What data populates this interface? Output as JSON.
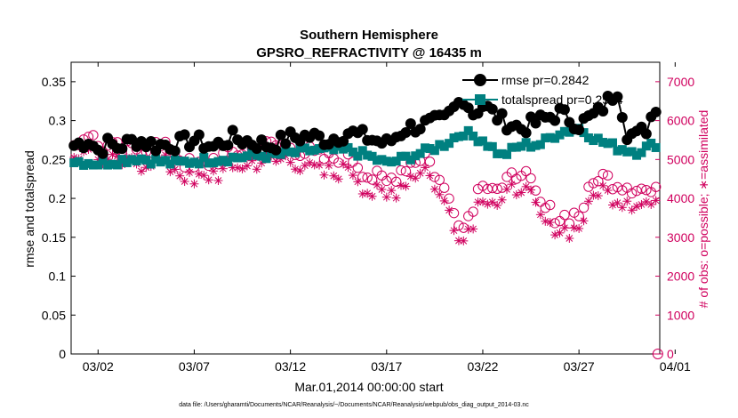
{
  "chart_data": {
    "type": "line",
    "title": "Southern Hemisphere",
    "subtitle": "GPSRO_REFRACTIVITY @ 16435 m",
    "xlabel": "Mar.01,2014 00:00:00 start",
    "ylabel": "rmse and totalspread",
    "y2label": "# of obs: o=possible; ∗=assimilated",
    "xlim": [
      0.6,
      31.2
    ],
    "ylim": [
      0,
      0.375
    ],
    "y2lim": [
      0,
      7500
    ],
    "x_ticks": [
      {
        "v": 2,
        "label": "03/02"
      },
      {
        "v": 7,
        "label": "03/07"
      },
      {
        "v": 12,
        "label": "03/12"
      },
      {
        "v": 17,
        "label": "03/17"
      },
      {
        "v": 22,
        "label": "03/22"
      },
      {
        "v": 27,
        "label": "03/27"
      },
      {
        "v": 32,
        "label": "04/01"
      }
    ],
    "y_ticks": [
      {
        "v": 0,
        "label": "0"
      },
      {
        "v": 0.05,
        "label": "0.05"
      },
      {
        "v": 0.1,
        "label": "0.1"
      },
      {
        "v": 0.15,
        "label": "0.15"
      },
      {
        "v": 0.2,
        "label": "0.2"
      },
      {
        "v": 0.25,
        "label": "0.25"
      },
      {
        "v": 0.3,
        "label": "0.3"
      },
      {
        "v": 0.35,
        "label": "0.35"
      }
    ],
    "y2_ticks": [
      {
        "v": 0,
        "label": "0"
      },
      {
        "v": 1000,
        "label": "1000"
      },
      {
        "v": 2000,
        "label": "2000"
      },
      {
        "v": 3000,
        "label": "3000"
      },
      {
        "v": 4000,
        "label": "4000"
      },
      {
        "v": 5000,
        "label": "5000"
      },
      {
        "v": 6000,
        "label": "6000"
      },
      {
        "v": 7000,
        "label": "7000"
      }
    ],
    "legend_position": "top-right",
    "series": [
      {
        "name": "rmse pr=0.2842",
        "color": "#000000",
        "marker": "circle",
        "anchors": [
          [
            0.75,
            0.268
          ],
          [
            1.5,
            0.275
          ],
          [
            2,
            0.262
          ],
          [
            2.5,
            0.27
          ],
          [
            3,
            0.266
          ],
          [
            4,
            0.275
          ],
          [
            5,
            0.268
          ],
          [
            6,
            0.27
          ],
          [
            7,
            0.275
          ],
          [
            8,
            0.266
          ],
          [
            9,
            0.278
          ],
          [
            10,
            0.272
          ],
          [
            11,
            0.268
          ],
          [
            12,
            0.278
          ],
          [
            13,
            0.28
          ],
          [
            14,
            0.275
          ],
          [
            15,
            0.285
          ],
          [
            16,
            0.278
          ],
          [
            17,
            0.27
          ],
          [
            18,
            0.29
          ],
          [
            19,
            0.295
          ],
          [
            20,
            0.3
          ],
          [
            20.5,
            0.315
          ],
          [
            21,
            0.33
          ],
          [
            21.5,
            0.31
          ],
          [
            22,
            0.32
          ],
          [
            23,
            0.3
          ],
          [
            24,
            0.29
          ],
          [
            25,
            0.3
          ],
          [
            26,
            0.31
          ],
          [
            27,
            0.295
          ],
          [
            28,
            0.31
          ],
          [
            29,
            0.34
          ],
          [
            29.5,
            0.285
          ],
          [
            30,
            0.28
          ],
          [
            30.5,
            0.29
          ],
          [
            31,
            0.32
          ]
        ]
      },
      {
        "name": "totalspread pr=0.2584",
        "color": "#008080",
        "marker": "square",
        "anchors": [
          [
            0.75,
            0.248
          ],
          [
            2,
            0.245
          ],
          [
            3,
            0.248
          ],
          [
            4,
            0.252
          ],
          [
            5,
            0.248
          ],
          [
            6,
            0.245
          ],
          [
            7,
            0.248
          ],
          [
            8,
            0.25
          ],
          [
            9,
            0.252
          ],
          [
            10,
            0.255
          ],
          [
            11,
            0.255
          ],
          [
            12,
            0.258
          ],
          [
            13,
            0.262
          ],
          [
            14,
            0.262
          ],
          [
            15,
            0.262
          ],
          [
            16,
            0.255
          ],
          [
            17,
            0.245
          ],
          [
            18,
            0.252
          ],
          [
            19,
            0.26
          ],
          [
            20,
            0.27
          ],
          [
            21,
            0.285
          ],
          [
            22,
            0.275
          ],
          [
            23,
            0.255
          ],
          [
            24,
            0.268
          ],
          [
            25,
            0.27
          ],
          [
            26,
            0.285
          ],
          [
            27,
            0.29
          ],
          [
            28,
            0.275
          ],
          [
            29,
            0.265
          ],
          [
            30,
            0.26
          ],
          [
            31,
            0.27
          ]
        ]
      },
      {
        "name": "possible",
        "color": "#d0005e",
        "marker": "open-circle",
        "axis": "right",
        "anchors": [
          [
            0.75,
            5350
          ],
          [
            1.5,
            5700
          ],
          [
            2,
            5350
          ],
          [
            3,
            5250
          ],
          [
            4,
            5300
          ],
          [
            5,
            5350
          ],
          [
            6,
            5150
          ],
          [
            7,
            4750
          ],
          [
            8,
            5000
          ],
          [
            9,
            5150
          ],
          [
            10,
            5250
          ],
          [
            11,
            5350
          ],
          [
            12,
            5350
          ],
          [
            13,
            5150
          ],
          [
            14,
            5000
          ],
          [
            15,
            5200
          ],
          [
            16,
            4600
          ],
          [
            17,
            4400
          ],
          [
            18,
            4850
          ],
          [
            19,
            5150
          ],
          [
            20,
            4200
          ],
          [
            20.5,
            3800
          ],
          [
            21,
            3250
          ],
          [
            22,
            4500
          ],
          [
            23,
            4200
          ],
          [
            24,
            4800
          ],
          [
            25,
            3800
          ],
          [
            26,
            3500
          ],
          [
            27,
            3600
          ],
          [
            28,
            4600
          ],
          [
            29,
            4400
          ],
          [
            30,
            4300
          ],
          [
            31,
            4100
          ]
        ]
      },
      {
        "name": "assimilated",
        "color": "#d0005e",
        "marker": "asterisk",
        "axis": "right",
        "anchors": [
          [
            0.75,
            5100
          ],
          [
            1.5,
            5300
          ],
          [
            2,
            5000
          ],
          [
            3,
            4900
          ],
          [
            4,
            4900
          ],
          [
            5,
            4950
          ],
          [
            6,
            4750
          ],
          [
            7,
            4450
          ],
          [
            8,
            4650
          ],
          [
            9,
            4900
          ],
          [
            10,
            5000
          ],
          [
            11,
            5100
          ],
          [
            12,
            5150
          ],
          [
            13,
            4950
          ],
          [
            14,
            4750
          ],
          [
            15,
            5000
          ],
          [
            16,
            4400
          ],
          [
            17,
            4200
          ],
          [
            18,
            4650
          ],
          [
            19,
            4900
          ],
          [
            20,
            3900
          ],
          [
            20.5,
            3550
          ],
          [
            21,
            2950
          ],
          [
            22,
            4200
          ],
          [
            23,
            3900
          ],
          [
            24,
            4450
          ],
          [
            25,
            3550
          ],
          [
            26,
            3250
          ],
          [
            27,
            3350
          ],
          [
            28,
            4300
          ],
          [
            29,
            4150
          ],
          [
            30,
            4050
          ],
          [
            31,
            3850
          ]
        ]
      }
    ],
    "last_point_obs": {
      "x": 31.1,
      "y2": 0
    }
  },
  "footer": "data file: /Users/gharamti/Documents/NCAR/Reanalysis/~/Documents/NCAR/Reanalysis/webpub/obs_diag_output_2014-03.nc"
}
